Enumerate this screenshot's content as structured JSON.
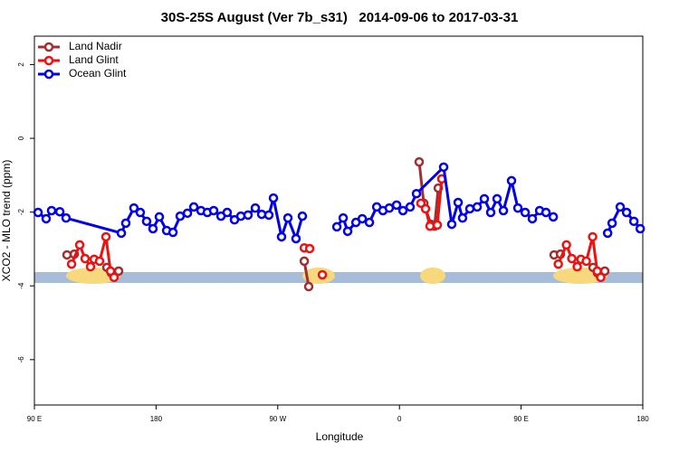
{
  "chart_data": {
    "type": "line",
    "title": "30S-25S August (Ver 7b_s31)   2014-09-06 to 2017-03-31",
    "x_label": "Longitude",
    "y_label": "XCO2 - MLO trend (ppm)",
    "xlim": [
      90,
      540
    ],
    "xticks": [
      {
        "value": 90,
        "label": "90 E"
      },
      {
        "value": 180,
        "label": "180"
      },
      {
        "value": 270,
        "label": "90 W"
      },
      {
        "value": 360,
        "label": "0"
      },
      {
        "value": 450,
        "label": "90 E"
      },
      {
        "value": 540,
        "label": "180"
      }
    ],
    "ylim": [
      -7.23,
      2.77
    ],
    "yticks": [
      2,
      0,
      -2,
      -4,
      -6
    ],
    "grid": false,
    "legend": "top-left",
    "series": [
      {
        "name": "Land Nadir",
        "color": "#a03030",
        "x": [
          114.1,
          119.5,
          null,
          143.6,
          146.9,
          152.3,
          null,
          289.6,
          292.9,
          null,
          374.6,
          378.0,
          383.3,
          null,
          386.0,
          388.7,
          null,
          474.4,
          479.1,
          null,
          503.2,
          506.5,
          511.9
        ],
        "values": [
          -3.16,
          -3.14,
          null,
          -3.5,
          -3.65,
          -3.6,
          null,
          -3.33,
          -4.02,
          null,
          -0.64,
          -1.76,
          -2.33,
          null,
          -2.38,
          -1.35,
          null,
          -3.16,
          -3.14,
          null,
          -3.5,
          -3.65,
          -3.6
        ]
      },
      {
        "name": "Land Glint",
        "color": "#ee1111",
        "x": [
          117.5,
          123.5,
          127.5,
          131.5,
          134.2,
          138.2,
          142.9,
          146.3,
          148.9,
          null,
          289.6,
          293.6,
          null,
          303.0,
          null,
          375.9,
          379.3,
          382.6,
          388.0,
          391.3,
          null,
          477.5,
          483.5,
          487.5,
          491.5,
          494.2,
          498.2,
          502.9,
          506.3,
          508.9
        ],
        "values": [
          -3.41,
          -2.89,
          -3.26,
          -3.48,
          -3.28,
          -3.33,
          -2.67,
          -3.6,
          -3.77,
          null,
          -2.97,
          -2.99,
          null,
          -3.7,
          null,
          -1.76,
          -1.91,
          -2.38,
          -2.35,
          -1.1,
          null,
          -3.41,
          -2.89,
          -3.26,
          -3.48,
          -3.28,
          -3.33,
          -2.67,
          -3.6,
          -3.77
        ]
      },
      {
        "name": "Ocean Glint",
        "color": "#0000ee",
        "x": [
          92.7,
          98.7,
          102.7,
          108.8,
          113.4,
          154.3,
          157.6,
          163.6,
          168.3,
          173.0,
          177.7,
          182.4,
          187.8,
          192.5,
          197.8,
          203.2,
          207.9,
          213.2,
          217.9,
          222.6,
          228.0,
          232.6,
          238.0,
          242.7,
          248.0,
          253.4,
          258.1,
          263.4,
          266.8,
          272.8,
          277.5,
          283.5,
          288.2,
          null,
          313.7,
          318.4,
          321.7,
          327.8,
          332.5,
          337.8,
          343.2,
          347.8,
          352.5,
          357.9,
          362.6,
          367.9,
          372.6,
          392.7,
          398.7,
          403.4,
          406.7,
          412.1,
          417.5,
          422.8,
          427.5,
          432.2,
          436.9,
          442.9,
          447.6,
          453.0,
          458.3,
          463.7,
          468.4,
          473.8,
          null,
          514.0,
          517.3,
          523.3,
          528.0,
          533.4,
          538.1
        ],
        "values": [
          -2.01,
          -2.18,
          -1.96,
          -1.99,
          -2.16,
          -2.57,
          -2.3,
          -1.89,
          -2.01,
          -2.25,
          -2.45,
          -2.13,
          -2.5,
          -2.55,
          -2.11,
          -2.03,
          -1.86,
          -1.96,
          -2.01,
          -1.96,
          -2.11,
          -2.01,
          -2.21,
          -2.11,
          -2.08,
          -1.89,
          -2.06,
          -2.08,
          -1.62,
          -2.67,
          -2.16,
          -2.72,
          -2.11,
          null,
          -2.4,
          -2.16,
          -2.52,
          -2.28,
          -2.18,
          -2.28,
          -1.86,
          -1.96,
          -1.89,
          -1.81,
          -1.96,
          -1.86,
          -1.5,
          -0.78,
          -2.33,
          -1.74,
          -2.16,
          -1.91,
          -1.86,
          -1.64,
          -2.01,
          -1.64,
          -1.96,
          -1.15,
          -1.89,
          -2.01,
          -2.18,
          -1.96,
          -2.01,
          -2.13,
          null,
          -2.57,
          -2.3,
          -1.86,
          -2.01,
          -2.25,
          -2.45
        ]
      }
    ]
  }
}
